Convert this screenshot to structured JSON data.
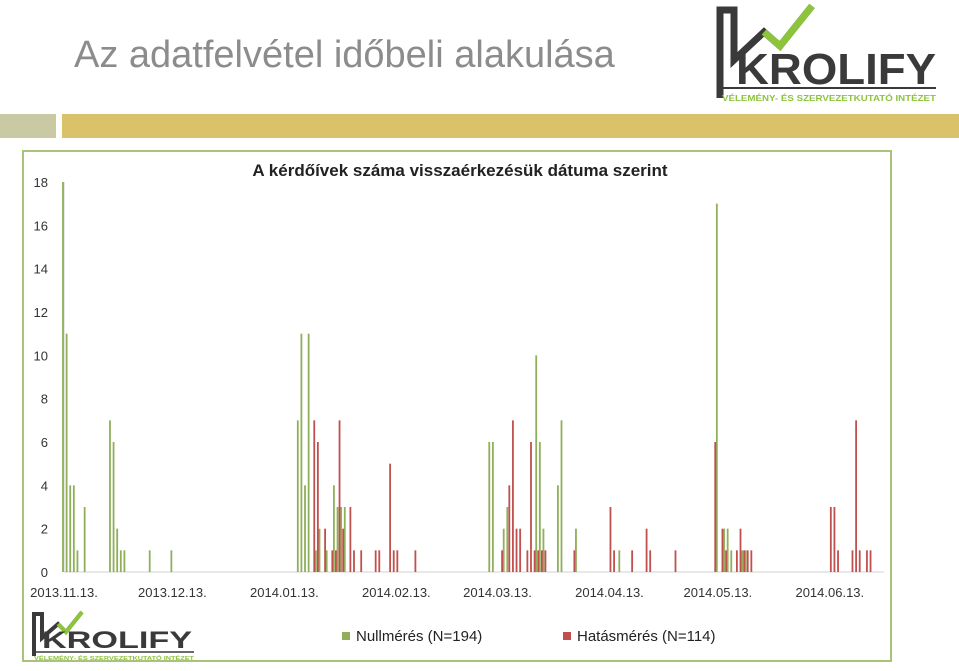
{
  "slide": {
    "title": "Az adatfelvétel időbeli alakulása"
  },
  "logo": {
    "name": "KROLIFY",
    "tagline": "VÉLEMÉNY- ÉS SZERVEZETKUTATÓ INTÉZET",
    "colors": {
      "accent": "#8cc43c",
      "dark": "#3a3a3a",
      "tagline": "#8cc43c"
    }
  },
  "colors": {
    "series1": "#8faf5a",
    "series2": "#c0504d",
    "header_bar": "#d9c26a",
    "header_bar_left": "#c9c9a3",
    "frame": "#a9c47a",
    "title": "#8c8c8c"
  },
  "chart_data": {
    "type": "bar",
    "title": "A kérdőívek száma visszaérkezésük dátuma szerint",
    "xlabel": "",
    "ylabel": "",
    "ylim": [
      0,
      18
    ],
    "yticks": [
      0,
      2,
      4,
      6,
      8,
      10,
      12,
      14,
      16,
      18
    ],
    "xlim": [
      "2013-11-13",
      "2014-06-28"
    ],
    "xticks": [
      {
        "date": "2013-11-13",
        "label": "2013.11.13."
      },
      {
        "date": "2013-12-13",
        "label": "2013.12.13."
      },
      {
        "date": "2014-01-13",
        "label": "2014.01.13."
      },
      {
        "date": "2014-02-13",
        "label": "2014.02.13."
      },
      {
        "date": "2014-03-13",
        "label": "2014.03.13."
      },
      {
        "date": "2014-04-13",
        "label": "2014.04.13."
      },
      {
        "date": "2014-05-13",
        "label": "2014.05.13."
      },
      {
        "date": "2014-06-13",
        "label": "2014.06.13."
      }
    ],
    "grid": false,
    "legend_position": "bottom",
    "series": [
      {
        "name": "Nullmérés (N=194)",
        "points": [
          {
            "date": "2013-11-13",
            "value": 18
          },
          {
            "date": "2013-11-14",
            "value": 11
          },
          {
            "date": "2013-11-15",
            "value": 4
          },
          {
            "date": "2013-11-16",
            "value": 4
          },
          {
            "date": "2013-11-17",
            "value": 1
          },
          {
            "date": "2013-11-19",
            "value": 3
          },
          {
            "date": "2013-11-26",
            "value": 7
          },
          {
            "date": "2013-11-27",
            "value": 6
          },
          {
            "date": "2013-11-28",
            "value": 2
          },
          {
            "date": "2013-11-29",
            "value": 1
          },
          {
            "date": "2013-11-30",
            "value": 1
          },
          {
            "date": "2013-12-07",
            "value": 1
          },
          {
            "date": "2013-12-13",
            "value": 1
          },
          {
            "date": "2014-01-17",
            "value": 7
          },
          {
            "date": "2014-01-18",
            "value": 11
          },
          {
            "date": "2014-01-19",
            "value": 4
          },
          {
            "date": "2014-01-20",
            "value": 11
          },
          {
            "date": "2014-01-22",
            "value": 1
          },
          {
            "date": "2014-01-23",
            "value": 2
          },
          {
            "date": "2014-01-25",
            "value": 1
          },
          {
            "date": "2014-01-27",
            "value": 4
          },
          {
            "date": "2014-01-28",
            "value": 3
          },
          {
            "date": "2014-01-29",
            "value": 3
          },
          {
            "date": "2014-01-30",
            "value": 3
          },
          {
            "date": "2014-03-11",
            "value": 6
          },
          {
            "date": "2014-03-12",
            "value": 6
          },
          {
            "date": "2014-03-15",
            "value": 2
          },
          {
            "date": "2014-03-16",
            "value": 3
          },
          {
            "date": "2014-03-24",
            "value": 10
          },
          {
            "date": "2014-03-25",
            "value": 6
          },
          {
            "date": "2014-03-26",
            "value": 2
          },
          {
            "date": "2014-03-30",
            "value": 4
          },
          {
            "date": "2014-03-31",
            "value": 7
          },
          {
            "date": "2014-04-04",
            "value": 2
          },
          {
            "date": "2014-04-16",
            "value": 1
          },
          {
            "date": "2014-05-13",
            "value": 17
          },
          {
            "date": "2014-05-15",
            "value": 2
          },
          {
            "date": "2014-05-16",
            "value": 2
          },
          {
            "date": "2014-05-17",
            "value": 1
          },
          {
            "date": "2014-05-20",
            "value": 1
          },
          {
            "date": "2014-05-21",
            "value": 1
          }
        ]
      },
      {
        "name": "Hatásmérés (N=114)",
        "points": [
          {
            "date": "2014-01-21",
            "value": 7
          },
          {
            "date": "2014-01-22",
            "value": 6
          },
          {
            "date": "2014-01-24",
            "value": 2
          },
          {
            "date": "2014-01-26",
            "value": 1
          },
          {
            "date": "2014-01-27",
            "value": 1
          },
          {
            "date": "2014-01-28",
            "value": 7
          },
          {
            "date": "2014-01-29",
            "value": 2
          },
          {
            "date": "2014-01-31",
            "value": 3
          },
          {
            "date": "2014-02-01",
            "value": 1
          },
          {
            "date": "2014-02-03",
            "value": 1
          },
          {
            "date": "2014-02-07",
            "value": 1
          },
          {
            "date": "2014-02-08",
            "value": 1
          },
          {
            "date": "2014-02-11",
            "value": 5
          },
          {
            "date": "2014-02-12",
            "value": 1
          },
          {
            "date": "2014-02-13",
            "value": 1
          },
          {
            "date": "2014-02-18",
            "value": 1
          },
          {
            "date": "2014-03-14",
            "value": 1
          },
          {
            "date": "2014-03-16",
            "value": 4
          },
          {
            "date": "2014-03-17",
            "value": 7
          },
          {
            "date": "2014-03-18",
            "value": 2
          },
          {
            "date": "2014-03-19",
            "value": 2
          },
          {
            "date": "2014-03-21",
            "value": 1
          },
          {
            "date": "2014-03-22",
            "value": 6
          },
          {
            "date": "2014-03-23",
            "value": 1
          },
          {
            "date": "2014-03-24",
            "value": 1
          },
          {
            "date": "2014-03-25",
            "value": 1
          },
          {
            "date": "2014-03-26",
            "value": 1
          },
          {
            "date": "2014-04-03",
            "value": 1
          },
          {
            "date": "2014-04-13",
            "value": 3
          },
          {
            "date": "2014-04-14",
            "value": 1
          },
          {
            "date": "2014-04-19",
            "value": 1
          },
          {
            "date": "2014-04-23",
            "value": 2
          },
          {
            "date": "2014-04-24",
            "value": 1
          },
          {
            "date": "2014-05-01",
            "value": 1
          },
          {
            "date": "2014-05-12",
            "value": 6
          },
          {
            "date": "2014-05-14",
            "value": 2
          },
          {
            "date": "2014-05-15",
            "value": 1
          },
          {
            "date": "2014-05-18",
            "value": 1
          },
          {
            "date": "2014-05-19",
            "value": 2
          },
          {
            "date": "2014-05-20",
            "value": 1
          },
          {
            "date": "2014-05-21",
            "value": 1
          },
          {
            "date": "2014-05-22",
            "value": 1
          },
          {
            "date": "2014-06-13",
            "value": 3
          },
          {
            "date": "2014-06-14",
            "value": 3
          },
          {
            "date": "2014-06-15",
            "value": 1
          },
          {
            "date": "2014-06-19",
            "value": 1
          },
          {
            "date": "2014-06-20",
            "value": 7
          },
          {
            "date": "2014-06-21",
            "value": 1
          },
          {
            "date": "2014-06-23",
            "value": 1
          },
          {
            "date": "2014-06-24",
            "value": 1
          }
        ]
      }
    ]
  }
}
